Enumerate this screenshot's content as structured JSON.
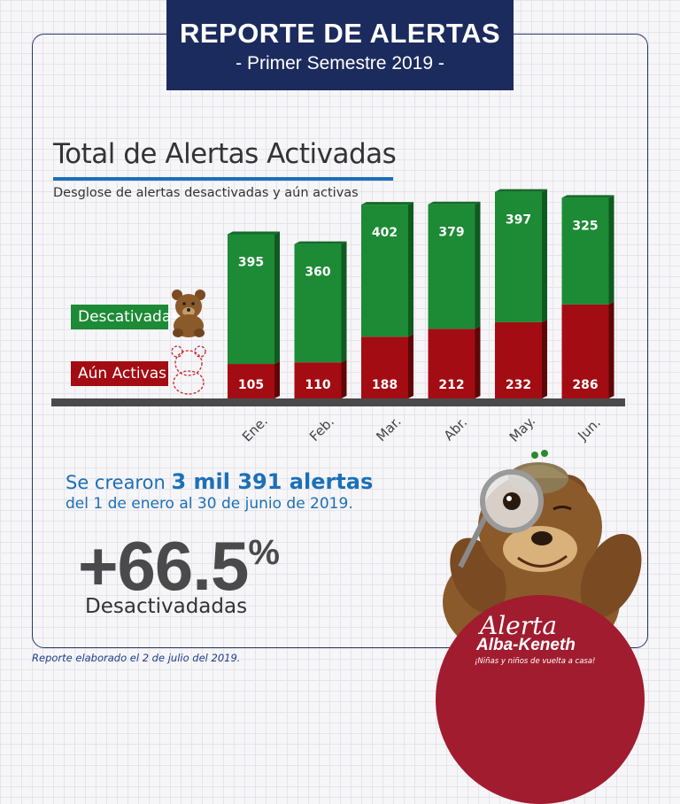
{
  "header": {
    "title": "REPORTE DE ALERTAS",
    "subtitle": "- Primer Semestre 2019 -"
  },
  "chart_title": "Total de Alertas Activadas",
  "chart_subtitle": "Desglose de alertas desactivadas y aún activas",
  "legend": {
    "deactivated": "Descativadas",
    "active": "Aún Activas"
  },
  "colors": {
    "deactivated": "#1d8a35",
    "active": "#a30c12",
    "navy": "#1c2b5e",
    "blue": "#1c70b8"
  },
  "chart_data": {
    "type": "bar",
    "stacked": true,
    "categories": [
      "Ene.",
      "Feb.",
      "Mar.",
      "Abr.",
      "May.",
      "Jun."
    ],
    "series": [
      {
        "name": "Aún Activas",
        "values": [
          105,
          110,
          188,
          212,
          232,
          286
        ]
      },
      {
        "name": "Descativadas",
        "values": [
          395,
          360,
          402,
          379,
          397,
          325
        ]
      }
    ],
    "legend_position": "left"
  },
  "summary": {
    "prefix": "Se crearon",
    "highlight": "3 mil 391 alertas",
    "line2": "del 1 de enero al 30 de junio de 2019."
  },
  "stat": {
    "value": "+66.5",
    "unit": "%",
    "label": "Desactivadadas"
  },
  "footer": "Reporte elaborado el 2 de julio del 2019.",
  "logo": {
    "line1": "Alerta",
    "line2": "Alba-Keneth",
    "tagline": "¡Niñas y niños de vuelta a casa!"
  }
}
